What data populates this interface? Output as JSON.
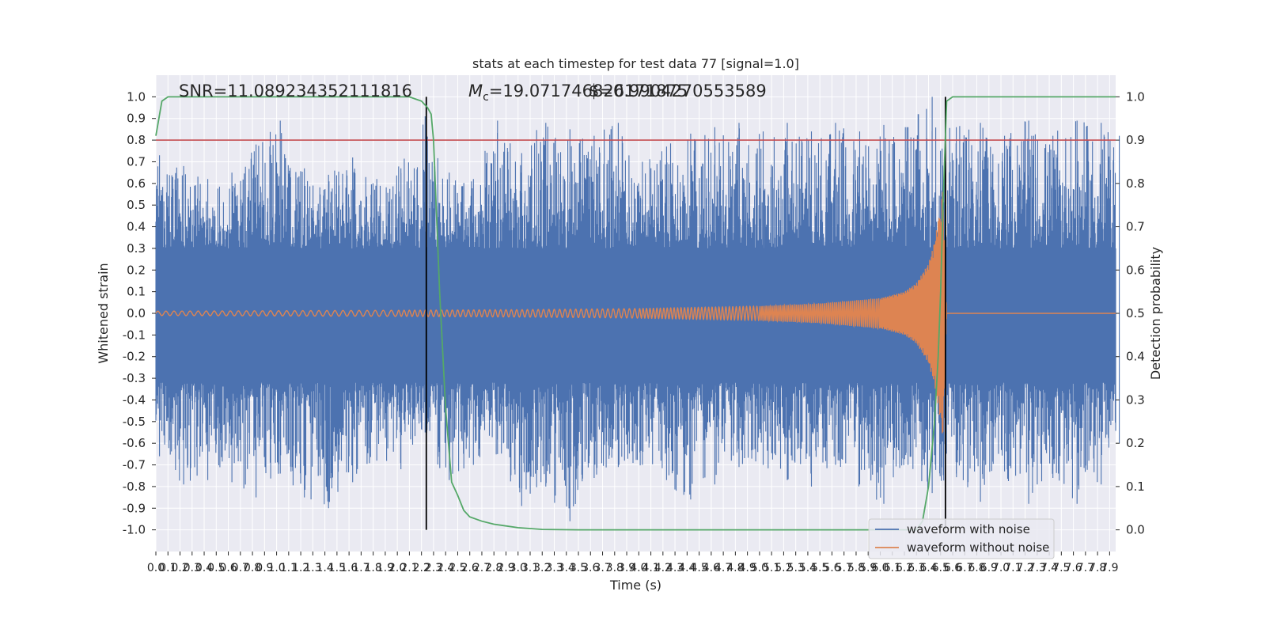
{
  "chart_data": {
    "type": "line",
    "title": "stats at each timestep for test data 77 [signal=1.0]",
    "xlabel": "Time (s)",
    "ylabel": "Whitened strain",
    "y2label": "Detection probability",
    "xlim": [
      0.0,
      7.95
    ],
    "ylim": [
      -1.1,
      1.1
    ],
    "y2lim": [
      -0.05,
      1.05
    ],
    "xticks": [
      0.0,
      0.1,
      0.2,
      0.3,
      0.4,
      0.5,
      0.6,
      0.7,
      0.8,
      0.9,
      1.0,
      1.1,
      1.2,
      1.3,
      1.4,
      1.5,
      1.6,
      1.7,
      1.8,
      1.9,
      2.0,
      2.1,
      2.2,
      2.3,
      2.4,
      2.5,
      2.6,
      2.7,
      2.8,
      2.9,
      3.0,
      3.1,
      3.2,
      3.3,
      3.4,
      3.5,
      3.6,
      3.7,
      3.8,
      3.9,
      4.0,
      4.1,
      4.2,
      4.3,
      4.4,
      4.5,
      4.6,
      4.7,
      4.8,
      4.9,
      5.0,
      5.1,
      5.2,
      5.3,
      5.4,
      5.5,
      5.6,
      5.7,
      5.8,
      5.9,
      6.0,
      6.1,
      6.2,
      6.3,
      6.4,
      6.5,
      6.6,
      6.7,
      6.8,
      6.9,
      7.0,
      7.1,
      7.2,
      7.3,
      7.4,
      7.5,
      7.6,
      7.7,
      7.8,
      7.9
    ],
    "yticks": [
      -1.0,
      -0.9,
      -0.8,
      -0.7,
      -0.6,
      -0.5,
      -0.4,
      -0.3,
      -0.2,
      -0.1,
      0.0,
      0.1,
      0.2,
      0.3,
      0.4,
      0.5,
      0.6,
      0.7,
      0.8,
      0.9,
      1.0
    ],
    "y2ticks": [
      0.0,
      0.1,
      0.2,
      0.3,
      0.4,
      0.5,
      0.6,
      0.7,
      0.8,
      0.9,
      1.0
    ],
    "grid": true,
    "legend_position": "bottom-right",
    "annotations": {
      "snr": "SNR=11.089234352111816",
      "mc_symbol": "M",
      "mc_subscript": "c",
      "mc": "=19.071746826171875",
      "second": "$=0.9904270553589"
    },
    "series": [
      {
        "name": "waveform with noise",
        "color": "#4c72b0",
        "kind": "noise",
        "envelope": {
          "x": [
            0.0,
            0.2,
            0.4,
            0.6,
            0.8,
            1.0,
            1.2,
            1.4,
            1.6,
            1.8,
            2.0,
            2.2,
            2.4,
            2.6,
            2.8,
            3.0,
            3.2,
            3.4,
            3.6,
            3.8,
            4.0,
            4.2,
            4.4,
            4.6,
            4.8,
            5.0,
            5.2,
            5.4,
            5.6,
            5.8,
            6.0,
            6.2,
            6.4,
            6.6,
            6.8,
            7.0,
            7.2,
            7.4,
            7.6,
            7.8,
            7.95
          ],
          "max": [
            0.73,
            0.68,
            0.62,
            0.65,
            0.78,
            0.89,
            0.67,
            0.64,
            0.72,
            0.62,
            0.67,
            0.91,
            0.65,
            0.62,
            0.89,
            0.74,
            0.88,
            0.85,
            0.82,
            0.88,
            0.7,
            0.77,
            0.83,
            0.86,
            0.88,
            0.84,
            0.88,
            0.84,
            0.88,
            0.84,
            0.87,
            0.86,
            1.0,
            0.86,
            0.88,
            0.82,
            0.89,
            0.82,
            0.89,
            0.88,
            0.82
          ],
          "min": [
            -0.66,
            -0.79,
            -0.77,
            -0.78,
            -0.85,
            -0.74,
            -0.85,
            -0.9,
            -0.78,
            -0.68,
            -0.72,
            -0.55,
            -0.77,
            -0.7,
            -0.65,
            -0.89,
            -0.8,
            -0.96,
            -0.76,
            -0.71,
            -0.7,
            -0.77,
            -0.86,
            -0.79,
            -0.71,
            -0.7,
            -0.77,
            -0.8,
            -0.7,
            -0.79,
            -0.88,
            -0.7,
            -0.83,
            -0.74,
            -0.87,
            -0.73,
            -0.88,
            -0.76,
            -0.88,
            -0.79,
            -0.6
          ]
        }
      },
      {
        "name": "waveform without noise",
        "color": "#dd8452",
        "kind": "chirp",
        "amplitude_x": [
          0.0,
          1.0,
          2.0,
          3.0,
          4.0,
          5.0,
          5.5,
          6.0,
          6.2,
          6.3,
          6.4,
          6.45,
          6.5,
          6.52,
          6.55,
          7.95
        ],
        "amplitude_y": [
          0.01,
          0.012,
          0.014,
          0.017,
          0.022,
          0.033,
          0.045,
          0.07,
          0.1,
          0.14,
          0.23,
          0.33,
          0.5,
          0.58,
          0.0,
          0.0
        ],
        "cycles_x": [
          0.0,
          2.0,
          4.0,
          5.0,
          6.0,
          6.5,
          6.55
        ],
        "cycles_y": [
          0.0,
          30,
          75,
          110,
          170,
          240,
          250
        ]
      },
      {
        "name": "",
        "color": "#55a868",
        "kind": "probability",
        "axis": "right",
        "x": [
          0.0,
          0.05,
          0.1,
          0.2,
          0.4,
          0.8,
          1.2,
          1.6,
          2.0,
          2.1,
          2.15,
          2.2,
          2.25,
          2.28,
          2.3,
          2.35,
          2.4,
          2.45,
          2.5,
          2.55,
          2.6,
          2.7,
          2.8,
          3.0,
          3.2,
          3.5,
          4.0,
          5.0,
          6.0,
          6.3,
          6.35,
          6.4,
          6.45,
          6.48,
          6.5,
          6.52,
          6.55,
          6.6,
          6.8,
          7.0,
          7.5,
          7.95
        ],
        "y": [
          0.91,
          0.99,
          1.0,
          1.0,
          1.0,
          1.0,
          1.0,
          1.0,
          1.0,
          1.0,
          0.995,
          0.99,
          0.975,
          0.96,
          0.9,
          0.55,
          0.28,
          0.11,
          0.08,
          0.045,
          0.03,
          0.02,
          0.013,
          0.005,
          0.001,
          0.0,
          0.0,
          0.0,
          0.0,
          0.0,
          0.02,
          0.1,
          0.25,
          0.4,
          0.55,
          0.75,
          0.99,
          1.0,
          1.0,
          1.0,
          1.0,
          1.0
        ]
      }
    ],
    "hlines": [
      {
        "y2": 0.9,
        "color": "#c44e52"
      }
    ],
    "vlines": [
      {
        "x": 2.24,
        "color": "#000000"
      },
      {
        "x": 6.54,
        "color": "#000000"
      }
    ]
  }
}
